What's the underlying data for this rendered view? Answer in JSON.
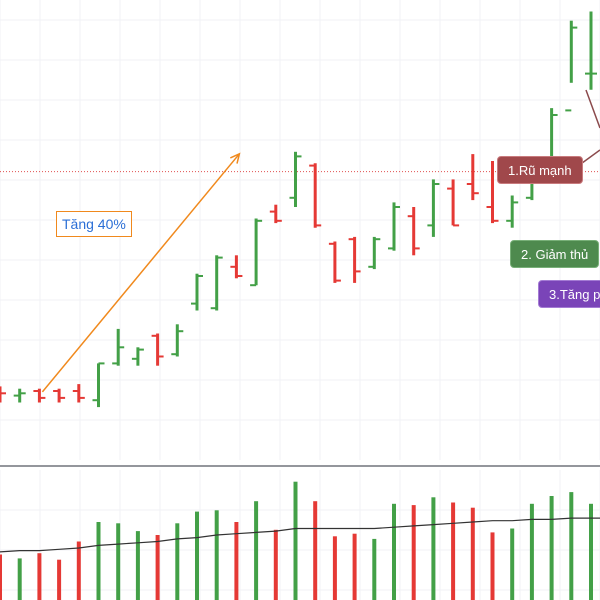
{
  "annotations": {
    "gain_label": "Tăng 40%",
    "label1": "1.Rũ mạnh",
    "label2": "2. Giảm thủ",
    "label3": "3.Tăng p"
  },
  "colors": {
    "up": "#43a047",
    "down": "#e53935",
    "trend_arrow": "#f0891d",
    "resistance_line": "#e05050",
    "volume_ma": "#333333"
  },
  "chart_data": [
    {
      "type": "ohlc",
      "price_range": [
        0,
        100
      ],
      "resistance_level": 62.7,
      "bars": [
        {
          "o": 16,
          "h": 16,
          "l": 12.5,
          "c": 14.5
        },
        {
          "o": 14,
          "h": 15.5,
          "l": 12.5,
          "c": 14.5
        },
        {
          "o": 15,
          "h": 15.5,
          "l": 12.5,
          "c": 13.5
        },
        {
          "o": 15,
          "h": 15.5,
          "l": 12.5,
          "c": 13.5
        },
        {
          "o": 15,
          "h": 16.5,
          "l": 12.5,
          "c": 13.5
        },
        {
          "o": 13,
          "h": 21,
          "l": 11.5,
          "c": 21
        },
        {
          "o": 21,
          "h": 28.5,
          "l": 20.5,
          "c": 24.5
        },
        {
          "o": 22,
          "h": 24.5,
          "l": 20.5,
          "c": 24
        },
        {
          "o": 27,
          "h": 27.5,
          "l": 20.5,
          "c": 22.5
        },
        {
          "o": 23,
          "h": 29.5,
          "l": 22.5,
          "c": 28
        },
        {
          "o": 34,
          "h": 40.5,
          "l": 32.5,
          "c": 40
        },
        {
          "o": 33,
          "h": 44.5,
          "l": 32.5,
          "c": 44
        },
        {
          "o": 42,
          "h": 44.5,
          "l": 39.5,
          "c": 40
        },
        {
          "o": 38,
          "h": 52.5,
          "l": 38,
          "c": 52
        },
        {
          "o": 54,
          "h": 55.5,
          "l": 51.5,
          "c": 52
        },
        {
          "o": 57,
          "h": 67,
          "l": 55,
          "c": 66
        },
        {
          "o": 64,
          "h": 64.5,
          "l": 50.5,
          "c": 51
        },
        {
          "o": 47,
          "h": 47.5,
          "l": 38.5,
          "c": 39
        },
        {
          "o": 48,
          "h": 48.5,
          "l": 38.5,
          "c": 41
        },
        {
          "o": 42,
          "h": 48.5,
          "l": 41.5,
          "c": 48
        },
        {
          "o": 46,
          "h": 56,
          "l": 45.5,
          "c": 55
        },
        {
          "o": 53,
          "h": 55,
          "l": 44.5,
          "c": 46
        },
        {
          "o": 51,
          "h": 61,
          "l": 48.5,
          "c": 60
        },
        {
          "o": 59,
          "h": 61,
          "l": 51,
          "c": 51
        },
        {
          "o": 60,
          "h": 66.5,
          "l": 56.5,
          "c": 58
        },
        {
          "o": 55,
          "h": 65,
          "l": 51.5,
          "c": 52
        },
        {
          "o": 52,
          "h": 57.5,
          "l": 50.5,
          "c": 56
        },
        {
          "o": 57,
          "h": 63.5,
          "l": 56.5,
          "c": 63
        },
        {
          "o": 63,
          "h": 76.5,
          "l": 62.5,
          "c": 75
        },
        {
          "o": 76,
          "h": 95.5,
          "l": 82,
          "c": 94
        },
        {
          "o": 84,
          "h": 97.5,
          "l": 80.5,
          "c": 84
        },
        {
          "o": 87,
          "h": 87.5,
          "l": 81.5,
          "c": 81
        },
        {
          "o": 92,
          "h": 93.5,
          "l": 82,
          "c": 84
        }
      ]
    },
    {
      "type": "bar",
      "name_hint": "volume",
      "values": [
        35,
        32,
        36,
        31,
        45,
        60,
        59,
        53,
        50,
        59,
        68,
        69,
        60,
        76,
        54,
        91,
        76,
        49,
        51,
        47,
        74,
        73,
        79,
        75,
        71,
        52,
        55,
        74,
        80,
        83,
        74,
        60,
        60
      ],
      "ma": [
        37,
        38,
        38,
        39,
        40,
        42,
        43,
        44,
        45,
        47,
        48,
        50,
        51,
        52,
        53,
        55,
        55,
        55,
        55,
        55,
        56,
        57,
        58,
        59,
        60,
        61,
        61,
        62,
        62,
        63,
        63,
        63,
        64
      ]
    }
  ]
}
